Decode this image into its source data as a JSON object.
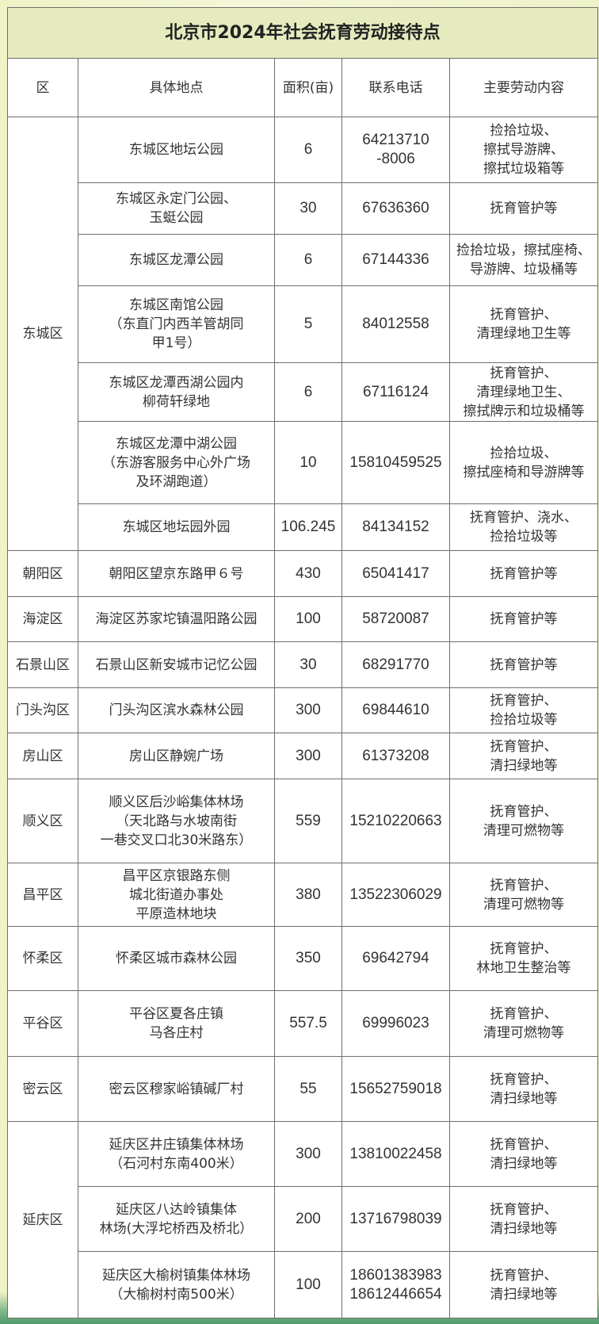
{
  "title": "北京市2024年社会抚育劳动接待点",
  "headers": [
    "区",
    "具体地点",
    "面积(亩)",
    "联系电话",
    "主要劳动内容"
  ],
  "rows": [
    {
      "district": "东城区",
      "location": "东城区地坛公园",
      "area": "6",
      "phone": "64213710\n-8006",
      "work": "捡拾垃圾、\n擦拭导游牌、\n擦拭垃圾箱等"
    },
    {
      "district": "",
      "location": "东城区永定门公园、\n玉蜓公园",
      "area": "30",
      "phone": "67636360",
      "work": "抚育管护等"
    },
    {
      "district": "",
      "location": "东城区龙潭公园",
      "area": "6",
      "phone": "67144336",
      "work": "捡拾垃圾，擦拭座椅、\n导游牌、垃圾桶等"
    },
    {
      "district": "",
      "location": "东城区南馆公园\n（东直门内西羊管胡同\n甲1号）",
      "area": "5",
      "phone": "84012558",
      "work": "抚育管护、\n清理绿地卫生等"
    },
    {
      "district": "",
      "location": "东城区龙潭西湖公园内\n柳荷轩绿地",
      "area": "6",
      "phone": "67116124",
      "work": "抚育管护、\n清理绿地卫生、\n擦拭牌示和垃圾桶等"
    },
    {
      "district": "",
      "location": "东城区龙潭中湖公园\n（东游客服务中心外广场\n及环湖跑道）",
      "area": "10",
      "phone": "15810459525",
      "work": "捡拾垃圾、\n擦拭座椅和导游牌等"
    },
    {
      "district": "",
      "location": "东城区地坛园外园",
      "area": "106.245",
      "phone": "84134152",
      "work": "抚育管护、浇水、\n捡拾垃圾等"
    },
    {
      "district": "朝阳区",
      "location": "朝阳区望京东路甲６号",
      "area": "430",
      "phone": "65041417",
      "work": "抚育管护等"
    },
    {
      "district": "海淀区",
      "location": "海淀区苏家坨镇温阳路公园",
      "area": "100",
      "phone": "58720087",
      "work": "抚育管护等"
    },
    {
      "district": "石景山区",
      "location": "石景山区新安城市记忆公园",
      "area": "30",
      "phone": "68291770",
      "work": "抚育管护等"
    },
    {
      "district": "门头沟区",
      "location": "门头沟区滨水森林公园",
      "area": "300",
      "phone": "69844610",
      "work": "抚育管护、\n捡拾垃圾等"
    },
    {
      "district": "房山区",
      "location": "房山区静婉广场",
      "area": "300",
      "phone": "61373208",
      "work": "抚育管护、\n清扫绿地等"
    },
    {
      "district": "顺义区",
      "location": "顺义区后沙峪集体林场\n（天北路与水坡南街\n一巷交叉口北30米路东）",
      "area": "559",
      "phone": "15210220663",
      "work": "抚育管护、\n清理可燃物等"
    },
    {
      "district": "昌平区",
      "location": "昌平区京银路东侧\n城北街道办事处\n平原造林地块",
      "area": "380",
      "phone": "13522306029",
      "work": "抚育管护、\n清理可燃物等"
    },
    {
      "district": "怀柔区",
      "location": "怀柔区城市森林公园",
      "area": "350",
      "phone": "69642794",
      "work": "抚育管护、\n林地卫生整治等"
    },
    {
      "district": "平谷区",
      "location": "平谷区夏各庄镇\n马各庄村",
      "area": "557.5",
      "phone": "69996023",
      "work": "抚育管护、\n清理可燃物等"
    },
    {
      "district": "密云区",
      "location": "密云区穆家峪镇碱厂村",
      "area": "55",
      "phone": "15652759018",
      "work": "抚育管护、\n清扫绿地等"
    },
    {
      "district": "延庆区",
      "location": "延庆区井庄镇集体林场\n（石河村东南400米）",
      "area": "300",
      "phone": "13810022458",
      "work": "抚育管护、\n清扫绿地等"
    },
    {
      "district": "",
      "location": "延庆区八达岭镇集体\n林场(大浮坨桥西及桥北）",
      "area": "200",
      "phone": "13716798039",
      "work": "抚育管护、\n清扫绿地等"
    },
    {
      "district": "",
      "location": "延庆区大榆树镇集体林场\n（大榆树村南500米）",
      "area": "100",
      "phone": "18601383983\n18612446654",
      "work": "抚育管护、\n清扫绿地等"
    }
  ],
  "colors": {
    "title_bg": "#e5ebbe",
    "border": "#6e6e6e",
    "page_bg": "#eef2c4"
  }
}
